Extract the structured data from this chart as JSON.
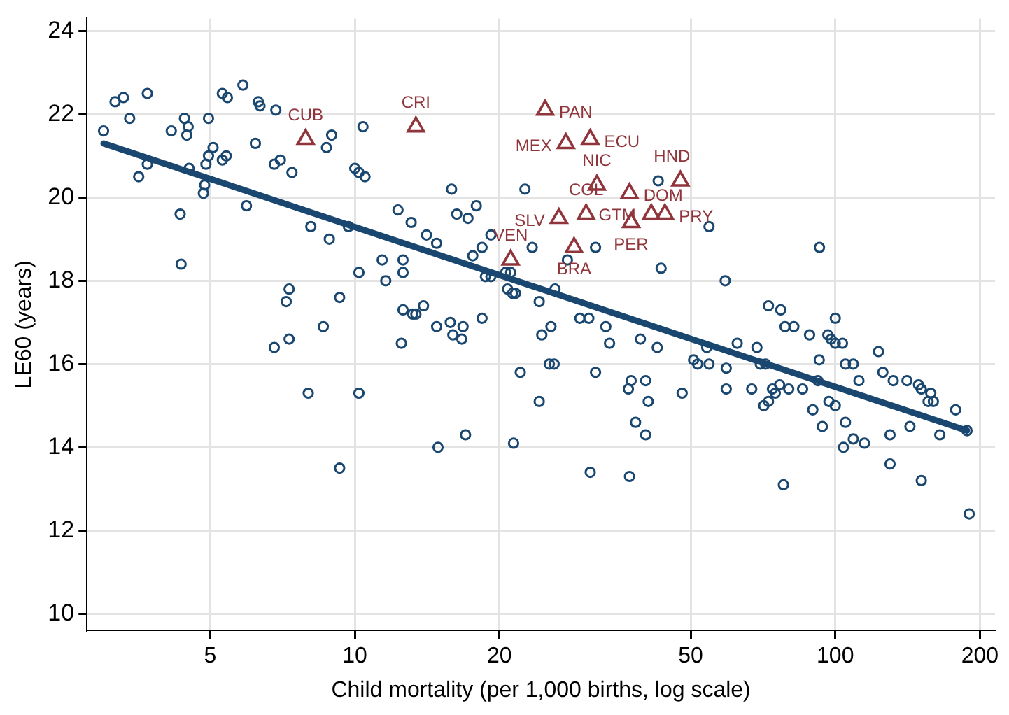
{
  "chart_data": {
    "type": "scatter",
    "xlabel": "Child mortality (per 1,000 births, log scale)",
    "ylabel": "LE60 (years)",
    "log": "x",
    "grid": true,
    "xlim": [
      2.77,
      215
    ],
    "xticks": [
      5,
      10,
      20,
      50,
      100,
      200
    ],
    "ylim": [
      9.6,
      24.3
    ],
    "yticks": [
      10,
      12,
      14,
      16,
      18,
      20,
      22,
      24
    ],
    "series": [
      {
        "type": "scatter",
        "marker": "circle",
        "color": "#1a476f",
        "x": [
          3.0,
          3.17,
          3.3,
          3.7,
          3.4,
          3.55,
          3.7,
          4.15,
          4.42,
          4.5,
          4.47,
          4.52,
          4.33,
          4.35,
          4.96,
          5.07,
          4.96,
          4.9,
          4.87,
          4.84,
          5.3,
          5.43,
          5.85,
          5.4,
          5.3,
          5.95,
          6.21,
          6.3,
          6.35,
          6.85,
          6.8,
          7.0,
          7.4,
          8.1,
          8.85,
          8.95,
          8.73,
          10.4,
          10,
          10.2,
          10.5,
          9.7,
          11.4,
          10.2,
          11.6,
          7.3,
          7.2,
          9.3,
          6.8,
          7.3,
          8.6,
          8.0,
          10.2,
          9.3,
          15.9,
          22.6,
          42.8,
          12.3,
          13.1,
          16.3,
          17.2,
          17.9,
          14.1,
          14.8,
          19.2,
          18.4,
          17.6,
          23.4,
          31.7,
          27.7,
          43.4,
          12.6,
          12.6,
          18.7,
          19.2,
          20.6,
          21.1,
          20.8,
          21.3,
          21.6,
          26.1,
          24.2,
          12.6,
          13.2,
          13.4,
          13.9,
          18.4,
          29.4,
          30.7,
          12.5,
          14.8,
          15.8,
          16.8,
          16.0,
          16.7,
          24.5,
          25.6,
          33.3,
          33.9,
          39.3,
          42.6,
          25.4,
          26.0,
          22.1,
          31.7,
          37.6,
          40.3,
          37.1,
          40.8,
          48.0,
          24.2,
          38.4,
          40.3,
          17.0,
          14.9,
          21.4,
          30.9,
          37.3,
          54.6,
          92.7,
          59,
          72.6,
          77,
          100,
          78.6,
          82,
          88.4,
          96.5,
          98,
          100,
          103.5,
          123,
          62.5,
          68.7,
          54,
          50.7,
          51.7,
          54.6,
          59.3,
          69.8,
          71.6,
          92.6,
          92,
          105,
          109,
          125.6,
          132,
          141,
          149,
          151,
          158,
          112,
          59.3,
          67,
          74,
          76.6,
          80,
          85.5,
          75,
          72.6,
          71,
          97,
          100,
          89.8,
          94,
          105,
          109,
          115,
          104,
          130,
          143,
          165,
          156,
          160,
          178,
          188,
          130,
          151,
          78,
          190
        ],
        "values": [
          21.6,
          22.3,
          22.4,
          22.5,
          21.9,
          20.5,
          20.8,
          21.6,
          21.9,
          21.7,
          21.5,
          20.7,
          19.6,
          18.4,
          21.9,
          21.2,
          21.0,
          20.8,
          20.3,
          20.1,
          22.5,
          22.4,
          22.7,
          21.0,
          20.9,
          19.8,
          21.3,
          22.3,
          22.2,
          22.1,
          20.8,
          20.9,
          20.6,
          19.3,
          19.0,
          21.5,
          21.2,
          21.7,
          20.7,
          20.6,
          20.5,
          19.3,
          18.5,
          18.2,
          18.0,
          17.8,
          17.5,
          17.6,
          16.4,
          16.6,
          16.9,
          15.3,
          15.3,
          13.5,
          20.2,
          20.2,
          20.4,
          19.7,
          19.4,
          19.6,
          19.5,
          19.8,
          19.1,
          18.9,
          19.1,
          18.8,
          18.6,
          18.8,
          18.8,
          18.5,
          18.3,
          18.5,
          18.2,
          18.1,
          18.1,
          18.2,
          18.2,
          17.8,
          17.7,
          17.7,
          17.8,
          17.5,
          17.3,
          17.2,
          17.2,
          17.4,
          17.1,
          17.1,
          17.1,
          16.5,
          16.9,
          17.0,
          16.9,
          16.7,
          16.6,
          16.7,
          16.9,
          16.9,
          16.5,
          16.6,
          16.4,
          16.0,
          16.0,
          15.8,
          15.8,
          15.6,
          15.6,
          15.4,
          15.1,
          15.3,
          15.1,
          14.6,
          14.3,
          14.3,
          14.0,
          14.1,
          13.4,
          13.3,
          19.3,
          18.8,
          18.0,
          17.4,
          17.3,
          17.1,
          16.9,
          16.9,
          16.7,
          16.7,
          16.6,
          16.5,
          16.5,
          16.3,
          16.5,
          16.4,
          16.4,
          16.1,
          16.0,
          16.0,
          15.9,
          16.0,
          16.0,
          16.1,
          15.6,
          16.0,
          16.0,
          15.8,
          15.6,
          15.6,
          15.5,
          15.4,
          15.3,
          15.6,
          15.4,
          15.4,
          15.4,
          15.5,
          15.4,
          15.4,
          15.3,
          15.1,
          15.0,
          15.1,
          15.0,
          14.9,
          14.5,
          14.6,
          14.2,
          14.1,
          14.0,
          14.3,
          14.5,
          14.3,
          15.1,
          15.1,
          14.9,
          14.4,
          13.6,
          13.2,
          13.1,
          12.4
        ]
      },
      {
        "type": "scatter",
        "marker": "triangle",
        "color": "#90353b",
        "x": [
          7.9,
          13.4,
          24.9,
          27.5,
          30.9,
          31.9,
          47.6,
          37.3,
          30.3,
          26.6,
          41.4,
          44.2,
          37.6,
          21.1,
          28.6
        ],
        "values": [
          21.4,
          21.7,
          22.1,
          21.3,
          21.4,
          20.3,
          20.4,
          20.1,
          19.6,
          19.5,
          19.6,
          19.6,
          19.4,
          18.5,
          18.8
        ]
      },
      {
        "type": "line",
        "marker": "none",
        "color": "#1a476f",
        "x": [
          3.0,
          188
        ],
        "values": [
          21.3,
          14.4
        ]
      }
    ],
    "annotations": [
      {
        "text": "CUB",
        "x": 7.9,
        "y": 21.4
      },
      {
        "text": "CRI",
        "x": 13.4,
        "y": 21.7
      },
      {
        "text": "PAN",
        "x": 24.9,
        "y": 22.1
      },
      {
        "text": "MEX",
        "x": 27.5,
        "y": 21.3
      },
      {
        "text": "ECU",
        "x": 30.9,
        "y": 21.4
      },
      {
        "text": "NIC",
        "x": 31.9,
        "y": 20.3
      },
      {
        "text": "HND",
        "x": 47.6,
        "y": 20.4
      },
      {
        "text": "DOM",
        "x": 37.3,
        "y": 20.1
      },
      {
        "text": "COL",
        "x": 30.3,
        "y": 19.6
      },
      {
        "text": "SLV",
        "x": 26.6,
        "y": 19.5
      },
      {
        "text": "GTM",
        "x": 41.4,
        "y": 19.6
      },
      {
        "text": "PRY",
        "x": 44.2,
        "y": 19.6
      },
      {
        "text": "PER",
        "x": 37.6,
        "y": 19.4
      },
      {
        "text": "VEN",
        "x": 21.1,
        "y": 18.5
      },
      {
        "text": "BRA",
        "x": 28.6,
        "y": 18.8
      }
    ]
  }
}
